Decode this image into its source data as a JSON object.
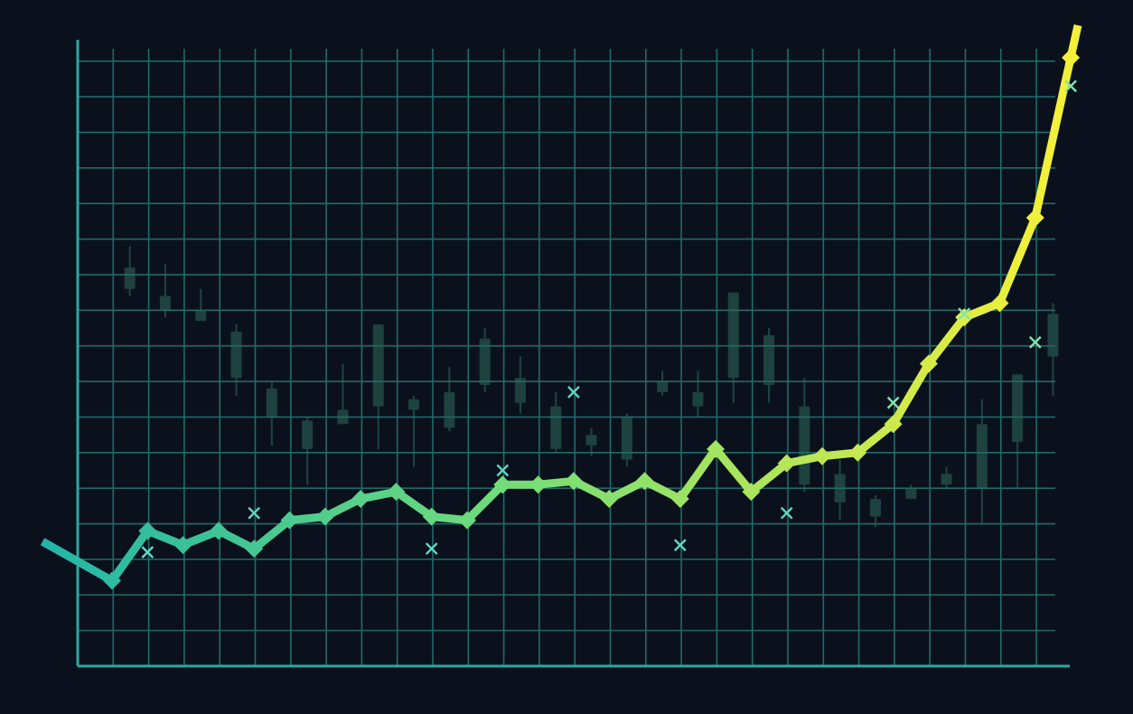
{
  "chart_data": {
    "type": "line",
    "title": "",
    "xlabel": "",
    "ylabel": "",
    "grid": true,
    "x": [
      0,
      1,
      2,
      3,
      4,
      5,
      6,
      7,
      8,
      9,
      10,
      11,
      12,
      13,
      14,
      15,
      16,
      17,
      18,
      19,
      20,
      21,
      22,
      23,
      24,
      25,
      26,
      27
    ],
    "xlim": [
      0,
      28
    ],
    "ylim": [
      0,
      17.5
    ],
    "series": [
      {
        "values": [
          2.4,
          3.8,
          3.4,
          3.8,
          3.3,
          4.1,
          4.2,
          4.7,
          4.9,
          4.2,
          4.1,
          5.1,
          5.1,
          5.2,
          4.7,
          5.2,
          4.7,
          6.1,
          4.9,
          5.7,
          5.9,
          6.0,
          6.8,
          8.5,
          9.8,
          10.2,
          12.6,
          17.1
        ],
        "lead_in_start": 3.5,
        "colors": [
          "#22b5a8",
          "#f2f03a"
        ]
      }
    ],
    "scatter_markers": [
      {
        "x": 1,
        "y": 3.2
      },
      {
        "x": 4,
        "y": 4.3
      },
      {
        "x": 9,
        "y": 3.3
      },
      {
        "x": 11,
        "y": 5.5
      },
      {
        "x": 13,
        "y": 7.7
      },
      {
        "x": 16,
        "y": 3.4
      },
      {
        "x": 19,
        "y": 4.3
      },
      {
        "x": 22,
        "y": 7.4
      },
      {
        "x": 24,
        "y": 9.9
      },
      {
        "x": 26,
        "y": 9.1
      },
      {
        "x": 27,
        "y": 16.3
      }
    ],
    "candlesticks": [
      {
        "x": 0.5,
        "high": 11.8,
        "low": 10.4,
        "open": 11.2,
        "close": 10.6
      },
      {
        "x": 1.5,
        "high": 11.3,
        "low": 9.8,
        "open": 10.4,
        "close": 10.0
      },
      {
        "x": 2.5,
        "high": 10.6,
        "low": 9.7,
        "open": 10.0,
        "close": 9.7
      },
      {
        "x": 3.5,
        "high": 9.6,
        "low": 7.6,
        "open": 9.4,
        "close": 8.1
      },
      {
        "x": 4.5,
        "high": 8.0,
        "low": 6.2,
        "open": 7.8,
        "close": 7.0
      },
      {
        "x": 5.5,
        "high": 7.0,
        "low": 5.1,
        "open": 6.9,
        "close": 6.1
      },
      {
        "x": 6.5,
        "high": 8.5,
        "low": 6.8,
        "open": 7.2,
        "close": 6.8
      },
      {
        "x": 7.5,
        "high": 9.6,
        "low": 6.1,
        "open": 9.6,
        "close": 7.3
      },
      {
        "x": 8.5,
        "high": 7.6,
        "low": 5.6,
        "open": 7.5,
        "close": 7.2
      },
      {
        "x": 9.5,
        "high": 8.4,
        "low": 6.6,
        "open": 7.7,
        "close": 6.7
      },
      {
        "x": 10.5,
        "high": 9.5,
        "low": 7.7,
        "open": 9.2,
        "close": 7.9
      },
      {
        "x": 11.5,
        "high": 8.7,
        "low": 7.1,
        "open": 7.4,
        "close": 8.1
      },
      {
        "x": 12.5,
        "high": 7.7,
        "low": 6.0,
        "open": 7.3,
        "close": 6.1
      },
      {
        "x": 13.5,
        "high": 6.7,
        "low": 5.9,
        "open": 6.5,
        "close": 6.2
      },
      {
        "x": 14.5,
        "high": 7.1,
        "low": 5.6,
        "open": 7.0,
        "close": 5.8
      },
      {
        "x": 15.5,
        "high": 8.3,
        "low": 7.6,
        "open": 7.7,
        "close": 8.0
      },
      {
        "x": 16.5,
        "high": 8.3,
        "low": 7.0,
        "open": 7.7,
        "close": 7.3
      },
      {
        "x": 17.5,
        "high": 10.5,
        "low": 7.4,
        "open": 10.5,
        "close": 8.1
      },
      {
        "x": 18.5,
        "high": 9.5,
        "low": 7.4,
        "open": 9.3,
        "close": 7.9
      },
      {
        "x": 19.5,
        "high": 8.1,
        "low": 4.9,
        "open": 7.3,
        "close": 5.1
      },
      {
        "x": 20.5,
        "high": 5.8,
        "low": 4.1,
        "open": 5.4,
        "close": 4.6
      },
      {
        "x": 21.5,
        "high": 4.8,
        "low": 3.9,
        "open": 4.7,
        "close": 4.2
      },
      {
        "x": 22.5,
        "high": 5.1,
        "low": 4.7,
        "open": 5.0,
        "close": 4.7
      },
      {
        "x": 23.5,
        "high": 5.6,
        "low": 5.0,
        "open": 5.4,
        "close": 5.1
      },
      {
        "x": 24.5,
        "high": 7.5,
        "low": 4.0,
        "open": 6.8,
        "close": 5.0
      },
      {
        "x": 25.5,
        "high": 8.2,
        "low": 5.0,
        "open": 8.2,
        "close": 6.3
      },
      {
        "x": 26.5,
        "high": 10.2,
        "low": 7.6,
        "open": 9.9,
        "close": 8.7
      }
    ]
  }
}
